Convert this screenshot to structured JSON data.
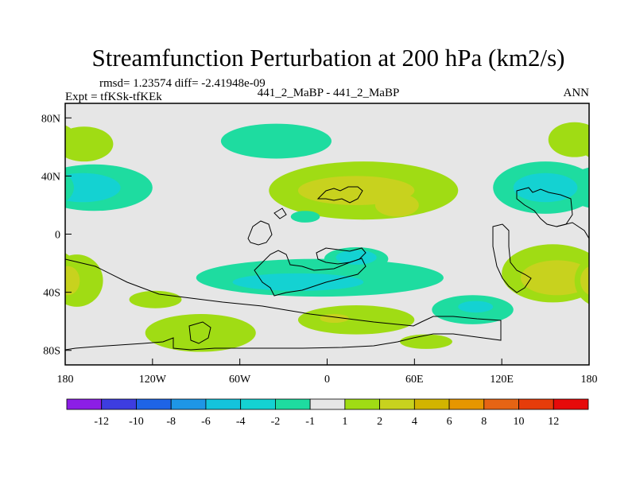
{
  "chart_data": {
    "type": "heatmap",
    "title": "Streamfunction Perturbation at 200 hPa (km2/s)",
    "stats": "rmsd= 1.23574 diff= -2.41948e-09",
    "experiment": "Expt = tfKSk-tfKEk",
    "case_label": "441_2_MaBP - 441_2_MaBP",
    "season": "ANN",
    "x_ticks": [
      {
        "lon": -180,
        "label": "180"
      },
      {
        "lon": -120,
        "label": "120W"
      },
      {
        "lon": -60,
        "label": "60W"
      },
      {
        "lon": 0,
        "label": "0"
      },
      {
        "lon": 60,
        "label": "60E"
      },
      {
        "lon": 120,
        "label": "120E"
      },
      {
        "lon": 180,
        "label": "180"
      }
    ],
    "y_ticks": [
      {
        "lat": 80,
        "label": "80N"
      },
      {
        "lat": 40,
        "label": "40N"
      },
      {
        "lat": 0,
        "label": "0"
      },
      {
        "lat": -40,
        "label": "40S"
      },
      {
        "lat": -80,
        "label": "80S"
      }
    ],
    "xlim": [
      -180,
      180
    ],
    "ylim": [
      -90,
      90
    ],
    "colorbar": {
      "colors": [
        "#8c1ee6",
        "#3d3de0",
        "#1e64e6",
        "#1e96e6",
        "#14c3dc",
        "#14d2d2",
        "#1edca0",
        "#e6e6e6",
        "#a0dc14",
        "#c8d21e",
        "#d2b400",
        "#e69600",
        "#e66414",
        "#e63c0a",
        "#e60a0a"
      ],
      "labels": [
        "-12",
        "-10",
        "-8",
        "-6",
        "-4",
        "-2",
        "-1",
        "1",
        "2",
        "4",
        "6",
        "8",
        "10",
        "12"
      ]
    },
    "contours": [
      {
        "level": 2,
        "color": "#a0dc14",
        "lon": -167,
        "lat": 62,
        "rlon": 20,
        "rlat": 12
      },
      {
        "level": 2,
        "color": "#a0dc14",
        "lon": 170,
        "lat": 65,
        "rlon": 18,
        "rlat": 12
      },
      {
        "level": -1,
        "color": "#1edca0",
        "lon": -35,
        "lat": 64,
        "rlon": 38,
        "rlat": 12
      },
      {
        "level": -1,
        "color": "#1edca0",
        "lon": -160,
        "lat": 32,
        "rlon": 40,
        "rlat": 16
      },
      {
        "level": -2,
        "color": "#14d2d2",
        "lon": -168,
        "lat": 32,
        "rlon": 26,
        "rlat": 10
      },
      {
        "level": 2,
        "color": "#a0dc14",
        "lon": 25,
        "lat": 30,
        "rlon": 65,
        "rlat": 20
      },
      {
        "level": 4,
        "color": "#c8d21e",
        "lon": 20,
        "lat": 30,
        "rlon": 40,
        "rlat": 10
      },
      {
        "level": 4,
        "color": "#c8d21e",
        "lon": 48,
        "lat": 20,
        "rlon": 15,
        "rlat": 8
      },
      {
        "level": -1,
        "color": "#1edca0",
        "lon": -15,
        "lat": 12,
        "rlon": 10,
        "rlat": 4
      },
      {
        "level": -1,
        "color": "#1edca0",
        "lon": 150,
        "lat": 32,
        "rlon": 36,
        "rlat": 18
      },
      {
        "level": -2,
        "color": "#14d2d2",
        "lon": 150,
        "lat": 32,
        "rlon": 22,
        "rlat": 10
      },
      {
        "level": 2,
        "color": "#a0dc14",
        "lon": 155,
        "lat": -27,
        "rlon": 35,
        "rlat": 20
      },
      {
        "level": 4,
        "color": "#c8d21e",
        "lon": 158,
        "lat": -30,
        "rlon": 25,
        "rlat": 12
      },
      {
        "level": 2,
        "color": "#a0dc14",
        "lon": -172,
        "lat": -32,
        "rlon": 18,
        "rlat": 18
      },
      {
        "level": 4,
        "color": "#c8d21e",
        "lon": -178,
        "lat": -32,
        "rlon": 8,
        "rlat": 10
      },
      {
        "level": -1,
        "color": "#1edca0",
        "lon": -5,
        "lat": -30,
        "rlon": 85,
        "rlat": 13
      },
      {
        "level": -1,
        "color": "#1edca0",
        "lon": 20,
        "lat": -17,
        "rlon": 22,
        "rlat": 8
      },
      {
        "level": -2,
        "color": "#14d2d2",
        "lon": -20,
        "lat": -33,
        "rlon": 45,
        "rlat": 6
      },
      {
        "level": -2,
        "color": "#14d2d2",
        "lon": 20,
        "lat": -16,
        "rlon": 14,
        "rlat": 5
      },
      {
        "level": -1,
        "color": "#1edca0",
        "lon": 100,
        "lat": -52,
        "rlon": 28,
        "rlat": 10
      },
      {
        "level": -2,
        "color": "#14d2d2",
        "lon": 102,
        "lat": -50,
        "rlon": 12,
        "rlat": 4
      },
      {
        "level": 2,
        "color": "#a0dc14",
        "lon": -87,
        "lat": -68,
        "rlon": 38,
        "rlat": 13
      },
      {
        "level": 2,
        "color": "#a0dc14",
        "lon": 20,
        "lat": -59,
        "rlon": 40,
        "rlat": 10
      },
      {
        "level": 4,
        "color": "#c8d21e",
        "lon": 5,
        "lat": -58,
        "rlon": 10,
        "rlat": 3
      },
      {
        "level": 2,
        "color": "#a0dc14",
        "lon": 68,
        "lat": -74,
        "rlon": 18,
        "rlat": 5
      },
      {
        "level": 2,
        "color": "#a0dc14",
        "lon": -118,
        "lat": -45,
        "rlon": 18,
        "rlat": 6
      }
    ]
  }
}
